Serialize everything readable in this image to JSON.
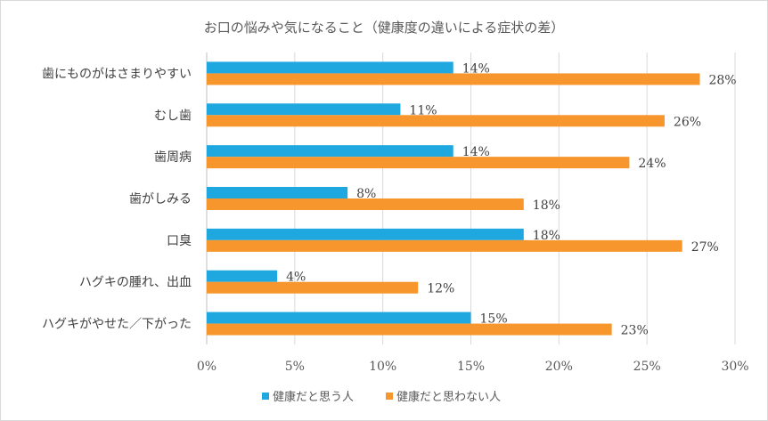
{
  "chart_data": {
    "type": "bar",
    "orientation": "horizontal",
    "title": "お口の悩みや気になること（健康度の違いによる症状の差）",
    "categories": [
      "歯にものがはさまりやすい",
      "むし歯",
      "歯周病",
      "歯がしみる",
      "口臭",
      "ハグキの腫れ、出血",
      "ハグキがやせた／下がった"
    ],
    "series": [
      {
        "name": "健康だと思う人",
        "color": "#1fa7e0",
        "values": [
          14,
          11,
          14,
          8,
          18,
          4,
          15
        ],
        "labels": [
          "14%",
          "11%",
          "14%",
          "8%",
          "18%",
          "4%",
          "15%"
        ]
      },
      {
        "name": "健康だと思わない人",
        "color": "#f7962d",
        "values": [
          28,
          26,
          24,
          18,
          27,
          12,
          23
        ],
        "labels": [
          "28%",
          "26%",
          "24%",
          "18%",
          "27%",
          "12%",
          "23%"
        ]
      }
    ],
    "xlim": [
      0,
      30
    ],
    "xticks": [
      0,
      5,
      10,
      15,
      20,
      25,
      30
    ],
    "xtick_labels": [
      "0%",
      "5%",
      "10%",
      "15%",
      "20%",
      "25%",
      "30%"
    ],
    "xlabel": "",
    "ylabel": "",
    "grid": "vertical",
    "legend": "bottom-center"
  },
  "colors": {
    "gridline": "#d9d9d9",
    "axis": "#bfbfbf"
  }
}
